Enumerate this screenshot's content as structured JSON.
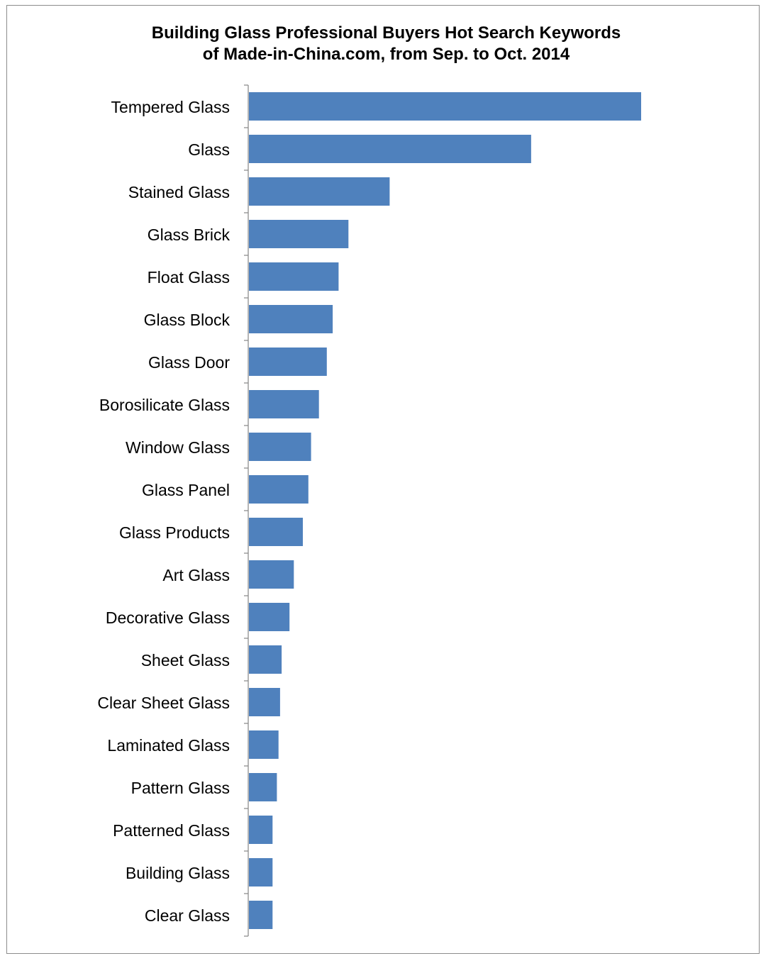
{
  "chart_data": {
    "type": "bar",
    "orientation": "horizontal",
    "title_lines": [
      "Building Glass Professional Buyers Hot Search Keywords",
      "of Made-in-China.com, from Sep. to Oct. 2014"
    ],
    "categories": [
      "Tempered Glass",
      "Glass",
      "Stained Glass",
      "Glass Brick",
      "Float Glass",
      "Glass Block",
      "Glass Door",
      "Borosilicate Glass",
      "Window Glass",
      "Glass Panel",
      "Glass Products",
      "Art Glass",
      "Decorative Glass",
      "Sheet Glass",
      "Clear Sheet Glass",
      "Laminated Glass",
      "Pattern Glass",
      "Patterned Glass",
      "Building Glass",
      "Clear Glass"
    ],
    "values": [
      100,
      72,
      36,
      25.5,
      23,
      21.5,
      20,
      18,
      16,
      15.3,
      13.9,
      11.6,
      10.5,
      8.5,
      8.1,
      7.7,
      7.3,
      6.2,
      6.2,
      6.2
    ],
    "value_axis": "relative (no scale printed)",
    "xlim": [
      0,
      100
    ],
    "grid": false,
    "legend": "none",
    "bar_color": "#4f81bd",
    "axis_color": "#868686"
  }
}
